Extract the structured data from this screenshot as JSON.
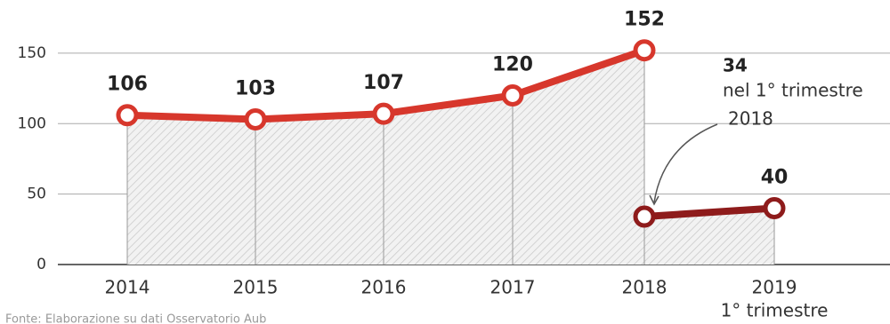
{
  "chart_data": {
    "type": "line",
    "categories": [
      "2014",
      "2015",
      "2016",
      "2017",
      "2018",
      "2019"
    ],
    "x_sublabels": [
      null,
      null,
      null,
      null,
      null,
      "1° trimestre"
    ],
    "series": [
      {
        "color": "#d7372c",
        "values": [
          106,
          103,
          107,
          120,
          152,
          null
        ]
      },
      {
        "color": "#8e1b1b",
        "values": [
          null,
          null,
          null,
          null,
          34,
          40
        ]
      }
    ],
    "annotation": [
      "nel 1° trimestre",
      "2018"
    ],
    "ylim": [
      0,
      160
    ],
    "yticks": [
      0,
      50,
      100,
      150
    ],
    "grid": true,
    "source": "Fonte: Elaborazione su dati Osservatorio Aub"
  }
}
